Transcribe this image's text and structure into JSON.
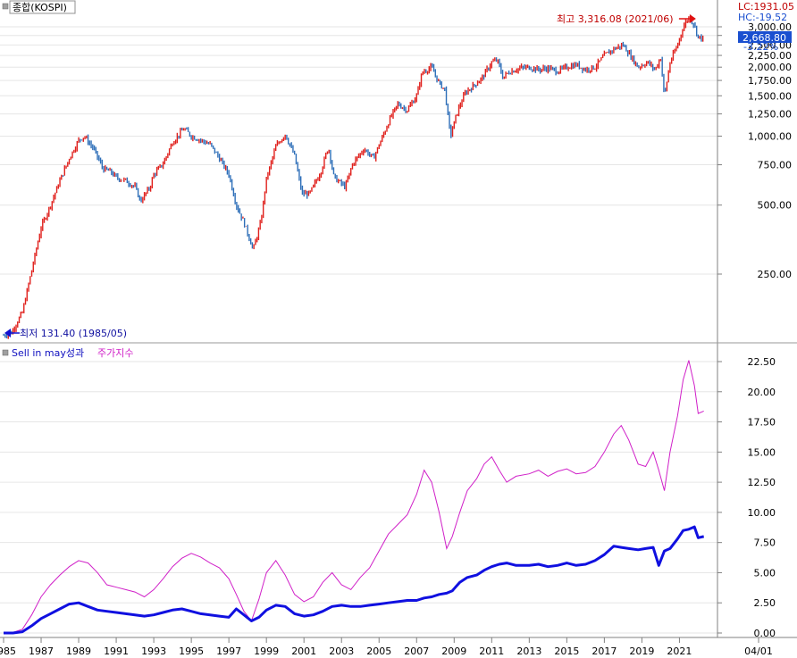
{
  "colors": {
    "up": "#e0201c",
    "down": "#2d6eb8",
    "benchmark": "#d020c8",
    "strategy": "#1010e0",
    "high_marker": "#e01010",
    "low_marker": "#1010d0",
    "price_box": "#1a4fd0"
  },
  "top_panel": {
    "label": "종합(KOSPI)",
    "lc_label": "LC:1931.05",
    "hc_label": "HC:-19.52",
    "high_note": "최고 3,316.08 (2021/06)",
    "low_note": "최저 131.40 (1985/05)",
    "current_price": "2,668.80",
    "current_change": "-3.22%",
    "y_ticks": [
      "3,000.00",
      "2,750.00",
      "2,500.00",
      "2,250.00",
      "2,000.00",
      "1,750.00",
      "1,500.00",
      "1,250.00",
      "1,000.00",
      "750.00",
      "500.00",
      "250.00"
    ]
  },
  "bottom_panel": {
    "legend_strategy": "Sell in may성과",
    "legend_benchmark": "주가지수",
    "y_ticks": [
      "22.50",
      "20.00",
      "17.50",
      "15.00",
      "12.50",
      "10.00",
      "7.50",
      "5.00",
      "2.50",
      "0.00"
    ]
  },
  "x_ticks": [
    "1985",
    "1987",
    "1989",
    "1991",
    "1993",
    "1995",
    "1997",
    "1999",
    "2001",
    "2003",
    "2005",
    "2007",
    "2009",
    "2011",
    "2013",
    "2015",
    "2017",
    "2019",
    "2021",
    "04/01"
  ],
  "chart_data": [
    {
      "type": "line",
      "title": "종합(KOSPI)",
      "scale": "log",
      "ylim": [
        130,
        3500
      ],
      "x": [
        1985.0,
        1985.4,
        1986.0,
        1986.5,
        1987.0,
        1987.5,
        1988.0,
        1988.5,
        1989.0,
        1989.3,
        1989.8,
        1990.3,
        1990.7,
        1991.0,
        1991.5,
        1992.0,
        1992.3,
        1992.8,
        1993.0,
        1993.5,
        1994.0,
        1994.6,
        1995.0,
        1995.5,
        1996.0,
        1996.5,
        1997.0,
        1997.4,
        1997.8,
        1998.3,
        1998.7,
        1999.0,
        1999.5,
        2000.0,
        2000.5,
        2000.9,
        2001.3,
        2001.9,
        2002.3,
        2002.6,
        2003.2,
        2003.6,
        2004.2,
        2004.7,
        2005.2,
        2005.6,
        2006.0,
        2006.5,
        2007.0,
        2007.3,
        2007.8,
        2008.2,
        2008.5,
        2008.8,
        2009.2,
        2009.6,
        2010.0,
        2010.5,
        2011.0,
        2011.3,
        2011.6,
        2011.9,
        2012.5,
        2013.0,
        2013.5,
        2014.0,
        2014.5,
        2015.0,
        2015.5,
        2016.0,
        2016.5,
        2017.0,
        2017.5,
        2018.0,
        2018.3,
        2018.8,
        2019.3,
        2019.7,
        2020.0,
        2020.2,
        2020.5,
        2020.9,
        2021.2,
        2021.5,
        2021.8,
        2022.0,
        2022.3
      ],
      "series": [
        {
          "values": [
            135,
            138,
            170,
            260,
            400,
            500,
            640,
            800,
            960,
            1000,
            880,
            720,
            700,
            660,
            640,
            600,
            520,
            600,
            680,
            760,
            940,
            1080,
            1000,
            960,
            920,
            800,
            680,
            500,
            420,
            320,
            420,
            650,
            900,
            1020,
            820,
            560,
            560,
            700,
            900,
            660,
            600,
            760,
            880,
            800,
            1000,
            1200,
            1380,
            1300,
            1500,
            1900,
            2000,
            1700,
            1600,
            1000,
            1300,
            1550,
            1650,
            1800,
            2100,
            2150,
            1800,
            1900,
            1980,
            2000,
            1950,
            1980,
            1920,
            2000,
            2050,
            1950,
            2000,
            2250,
            2400,
            2500,
            2300,
            2000,
            2100,
            1950,
            2200,
            1480,
            2100,
            2500,
            3000,
            3300,
            3050,
            2700,
            2668.8
          ]
        }
      ]
    },
    {
      "type": "line",
      "title": "",
      "ylim": [
        0,
        23
      ],
      "x": [
        1985.0,
        1985.5,
        1986.0,
        1986.5,
        1987.0,
        1987.5,
        1988.0,
        1988.5,
        1989.0,
        1989.5,
        1990.0,
        1990.5,
        1991.0,
        1991.5,
        1992.0,
        1992.5,
        1993.0,
        1993.5,
        1994.0,
        1994.5,
        1995.0,
        1995.5,
        1996.0,
        1996.5,
        1997.0,
        1997.4,
        1997.8,
        1998.2,
        1998.6,
        1999.0,
        1999.5,
        2000.0,
        2000.5,
        2001.0,
        2001.5,
        2002.0,
        2002.5,
        2003.0,
        2003.5,
        2004.0,
        2004.5,
        2005.0,
        2005.5,
        2006.0,
        2006.5,
        2007.0,
        2007.4,
        2007.8,
        2008.2,
        2008.6,
        2008.9,
        2009.3,
        2009.7,
        2010.2,
        2010.6,
        2011.0,
        2011.4,
        2011.8,
        2012.3,
        2013.0,
        2013.5,
        2014.0,
        2014.5,
        2015.0,
        2015.5,
        2016.0,
        2016.5,
        2017.0,
        2017.5,
        2017.9,
        2018.3,
        2018.8,
        2019.2,
        2019.6,
        2019.9,
        2020.2,
        2020.5,
        2020.9,
        2021.2,
        2021.5,
        2021.8,
        2022.0,
        2022.3
      ],
      "series": [
        {
          "name": "주가지수",
          "values": [
            0,
            0.05,
            0.3,
            1.5,
            3.0,
            4.0,
            4.8,
            5.5,
            6.0,
            5.8,
            5.0,
            4.0,
            3.8,
            3.6,
            3.4,
            3.0,
            3.6,
            4.5,
            5.5,
            6.2,
            6.6,
            6.3,
            5.8,
            5.4,
            4.5,
            3.2,
            1.8,
            1.0,
            2.8,
            5.0,
            6.0,
            4.8,
            3.2,
            2.6,
            3.0,
            4.2,
            5.0,
            4.0,
            3.6,
            4.6,
            5.4,
            6.8,
            8.2,
            9.0,
            9.8,
            11.5,
            13.5,
            12.5,
            10.0,
            7.0,
            8.0,
            10.0,
            11.8,
            12.8,
            14.0,
            14.6,
            13.5,
            12.5,
            13.0,
            13.2,
            13.5,
            13.0,
            13.4,
            13.6,
            13.2,
            13.3,
            13.8,
            15.0,
            16.5,
            17.2,
            16.0,
            14.0,
            13.8,
            15.0,
            13.5,
            11.8,
            15.0,
            18.0,
            21.0,
            22.6,
            20.5,
            18.2,
            18.4
          ]
        },
        {
          "name": "Sell in may성과",
          "values": [
            0,
            0.0,
            0.1,
            0.6,
            1.2,
            1.6,
            2.0,
            2.4,
            2.5,
            2.2,
            1.9,
            1.8,
            1.7,
            1.6,
            1.5,
            1.4,
            1.5,
            1.7,
            1.9,
            2.0,
            1.8,
            1.6,
            1.5,
            1.4,
            1.3,
            2.0,
            1.5,
            1.0,
            1.3,
            1.9,
            2.3,
            2.2,
            1.6,
            1.4,
            1.5,
            1.8,
            2.2,
            2.3,
            2.2,
            2.2,
            2.3,
            2.4,
            2.5,
            2.6,
            2.7,
            2.7,
            2.9,
            3.0,
            3.2,
            3.3,
            3.5,
            4.2,
            4.6,
            4.8,
            5.2,
            5.5,
            5.7,
            5.8,
            5.6,
            5.6,
            5.7,
            5.5,
            5.6,
            5.8,
            5.6,
            5.7,
            6.0,
            6.5,
            7.2,
            7.1,
            7.0,
            6.9,
            7.0,
            7.1,
            5.6,
            6.8,
            7.0,
            7.8,
            8.5,
            8.6,
            8.8,
            7.9,
            8.0
          ]
        }
      ]
    }
  ]
}
